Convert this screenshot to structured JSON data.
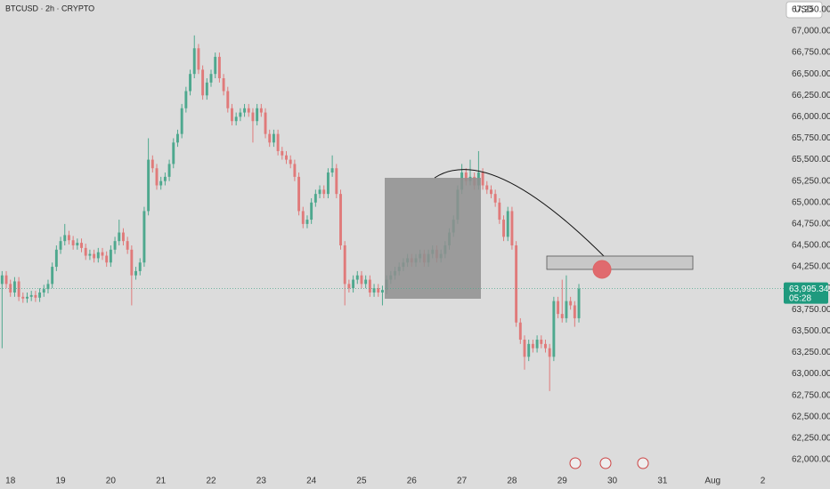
{
  "chart_data": {
    "type": "candlestick",
    "title": "BTCUSD · 2h · CRYPTO",
    "currency": "USD",
    "last_price_label": "63,995.34",
    "countdown": "05:28",
    "up_color": "#4ea88e",
    "down_color": "#e07a7a",
    "grid": false,
    "xlim": [
      -0.5,
      187
    ],
    "xticks": [
      {
        "value": 2,
        "label": "18"
      },
      {
        "value": 14,
        "label": "19"
      },
      {
        "value": 26,
        "label": "20"
      },
      {
        "value": 38,
        "label": "21"
      },
      {
        "value": 50,
        "label": "22"
      },
      {
        "value": 62,
        "label": "23"
      },
      {
        "value": 74,
        "label": "24"
      },
      {
        "value": 86,
        "label": "25"
      },
      {
        "value": 98,
        "label": "26"
      },
      {
        "value": 110,
        "label": "27"
      },
      {
        "value": 122,
        "label": "28"
      },
      {
        "value": 134,
        "label": "29"
      },
      {
        "value": 146,
        "label": "30"
      },
      {
        "value": 158,
        "label": "31"
      },
      {
        "value": 170,
        "label": "Aug"
      },
      {
        "value": 182,
        "label": "2"
      }
    ],
    "ylim": [
      61865,
      67363
    ],
    "yticks": [
      {
        "value": 62000,
        "label": "62,000.00"
      },
      {
        "value": 62250,
        "label": "62,250.00"
      },
      {
        "value": 62500,
        "label": "62,500.00"
      },
      {
        "value": 62750,
        "label": "62,750.00"
      },
      {
        "value": 63000,
        "label": "63,000.00"
      },
      {
        "value": 63250,
        "label": "63,250.00"
      },
      {
        "value": 63500,
        "label": "63,500.00"
      },
      {
        "value": 63750,
        "label": "63,750.00"
      },
      {
        "value": 64000,
        "label": "64,000.00"
      },
      {
        "value": 64250,
        "label": "64,250.00"
      },
      {
        "value": 64500,
        "label": "64,500.00"
      },
      {
        "value": 64750,
        "label": "64,750.00"
      },
      {
        "value": 65000,
        "label": "65,000.00"
      },
      {
        "value": 65250,
        "label": "65,250.00"
      },
      {
        "value": 65500,
        "label": "65,500.00"
      },
      {
        "value": 65750,
        "label": "65,750.00"
      },
      {
        "value": 66000,
        "label": "66,000.00"
      },
      {
        "value": 66250,
        "label": "66,250.00"
      },
      {
        "value": 66500,
        "label": "66,500.00"
      },
      {
        "value": 66750,
        "label": "66,750.00"
      },
      {
        "value": 67000,
        "label": "67,000.00"
      },
      {
        "value": 67250,
        "label": "67,250.00"
      }
    ],
    "open": [
      64050,
      64150,
      64050,
      63950,
      64080,
      63900,
      63880,
      63900,
      63920,
      63890,
      63950,
      63990,
      64050,
      64250,
      64450,
      64550,
      64620,
      64560,
      64500,
      64530,
      64470,
      64380,
      64400,
      64350,
      64420,
      64380,
      64300,
      64450,
      64550,
      64650,
      64550,
      64450,
      64150,
      64200,
      64300,
      64900,
      65500,
      65400,
      65200,
      65250,
      65300,
      65450,
      65700,
      65800,
      66100,
      66300,
      66500,
      66800,
      66550,
      66250,
      66400,
      66500,
      66700,
      66450,
      66300,
      66100,
      65950,
      66000,
      66050,
      66100,
      66050,
      65950,
      66100,
      66050,
      65800,
      65700,
      65800,
      65600,
      65550,
      65500,
      65450,
      65300,
      64900,
      64750,
      64800,
      65000,
      65100,
      65150,
      65100,
      65350,
      65400,
      65100,
      64500,
      64050,
      64000,
      64100,
      64150,
      64050,
      64100,
      63950,
      64000,
      63950,
      63980,
      64100,
      64150,
      64200,
      64250,
      64300,
      64350,
      64300,
      64350,
      64400,
      64300,
      64400,
      64450,
      64350,
      64400,
      64500,
      64650,
      64800,
      65150,
      65350,
      65250,
      65300,
      65200,
      65350,
      65200,
      65150,
      65100,
      65000,
      64800,
      64600,
      64900,
      64500,
      63600,
      63400,
      63200,
      63350,
      63300,
      63400,
      63350,
      63300,
      63200,
      63850,
      63700,
      63650,
      63850,
      63800,
      63650
    ],
    "high": [
      64200,
      64200,
      64100,
      64130,
      64130,
      63950,
      63950,
      63970,
      63970,
      64000,
      64040,
      64100,
      64300,
      64500,
      64600,
      64750,
      64670,
      64610,
      64580,
      64580,
      64520,
      64450,
      64450,
      64470,
      64470,
      64430,
      64500,
      64600,
      64800,
      64700,
      64600,
      64500,
      64250,
      64350,
      64950,
      65750,
      65550,
      65450,
      65300,
      65350,
      65500,
      65750,
      65850,
      66150,
      66350,
      66550,
      66950,
      66850,
      66600,
      66450,
      66550,
      66750,
      66750,
      66500,
      66350,
      66150,
      66050,
      66100,
      66150,
      66150,
      66100,
      66150,
      66150,
      66100,
      65850,
      65850,
      65850,
      65650,
      65600,
      65550,
      65500,
      65350,
      64950,
      64850,
      65050,
      65150,
      65200,
      65200,
      65400,
      65550,
      65450,
      65150,
      64550,
      64100,
      64150,
      64200,
      64200,
      64150,
      64150,
      64050,
      64050,
      64030,
      64150,
      64200,
      64250,
      64300,
      64350,
      64400,
      64400,
      64400,
      64450,
      64450,
      64450,
      64500,
      64500,
      64450,
      64550,
      64700,
      64850,
      65200,
      65450,
      65400,
      65500,
      65350,
      65600,
      65400,
      65250,
      65200,
      65150,
      65050,
      64850,
      64950,
      64950,
      64550,
      63650,
      63450,
      63400,
      63400,
      63450,
      63450,
      63400,
      63350,
      63900,
      63900,
      64100,
      64150,
      63900,
      63850,
      64050
    ],
    "low": [
      63300,
      64000,
      63900,
      63900,
      63850,
      63830,
      63830,
      63850,
      63840,
      63840,
      63900,
      63940,
      64000,
      64200,
      64400,
      64500,
      64510,
      64450,
      64450,
      64420,
      64330,
      64330,
      64300,
      64300,
      64330,
      64250,
      64250,
      64400,
      64500,
      64500,
      64400,
      63800,
      64100,
      64150,
      64250,
      64850,
      65350,
      65150,
      65150,
      65200,
      65250,
      65400,
      65650,
      65750,
      66050,
      66250,
      66450,
      66500,
      66200,
      66200,
      66350,
      66450,
      66400,
      66250,
      66050,
      65900,
      65900,
      65950,
      66000,
      66000,
      65700,
      65900,
      66000,
      65750,
      65650,
      65650,
      65550,
      65500,
      65450,
      65400,
      65250,
      64850,
      64700,
      64700,
      64750,
      64950,
      65050,
      65050,
      65050,
      65300,
      65050,
      64450,
      63800,
      63950,
      63950,
      64050,
      64000,
      64000,
      63900,
      63900,
      63900,
      63800,
      63930,
      64050,
      64100,
      64150,
      64200,
      64250,
      64250,
      64250,
      64300,
      64250,
      64250,
      64350,
      64300,
      64300,
      64350,
      64450,
      64600,
      64750,
      65100,
      65200,
      65200,
      65150,
      65150,
      65150,
      65100,
      65050,
      64950,
      64750,
      64550,
      64550,
      64450,
      63550,
      63350,
      63050,
      63150,
      63250,
      63250,
      63300,
      63250,
      62800,
      63150,
      63650,
      63600,
      63600,
      63750,
      63550,
      63600
    ],
    "close": [
      64150,
      64050,
      63950,
      64080,
      63900,
      63880,
      63900,
      63920,
      63890,
      63950,
      63990,
      64050,
      64250,
      64450,
      64550,
      64620,
      64560,
      64500,
      64530,
      64470,
      64380,
      64400,
      64350,
      64420,
      64380,
      64300,
      64450,
      64550,
      64650,
      64550,
      64450,
      64150,
      64200,
      64300,
      64900,
      65500,
      65400,
      65200,
      65250,
      65300,
      65450,
      65700,
      65800,
      66100,
      66300,
      66500,
      66800,
      66550,
      66250,
      66400,
      66500,
      66700,
      66450,
      66300,
      66100,
      65950,
      66000,
      66050,
      66100,
      66050,
      65950,
      66100,
      66050,
      65800,
      65700,
      65800,
      65600,
      65550,
      65500,
      65450,
      65300,
      64900,
      64750,
      64800,
      65000,
      65100,
      65150,
      65100,
      65350,
      65400,
      65100,
      64500,
      64050,
      64000,
      64100,
      64150,
      64050,
      64100,
      63950,
      64000,
      63950,
      63980,
      64100,
      64150,
      64200,
      64250,
      64300,
      64350,
      64300,
      64350,
      64400,
      64300,
      64400,
      64450,
      64350,
      64400,
      64500,
      64650,
      64800,
      65150,
      65350,
      65250,
      65300,
      65200,
      65350,
      65200,
      65150,
      65100,
      65000,
      64800,
      64600,
      64900,
      64500,
      63600,
      63400,
      63200,
      63350,
      63300,
      63400,
      63350,
      63300,
      63200,
      63850,
      63700,
      63650,
      63850,
      63800,
      63650,
      63995.34
    ]
  }
}
